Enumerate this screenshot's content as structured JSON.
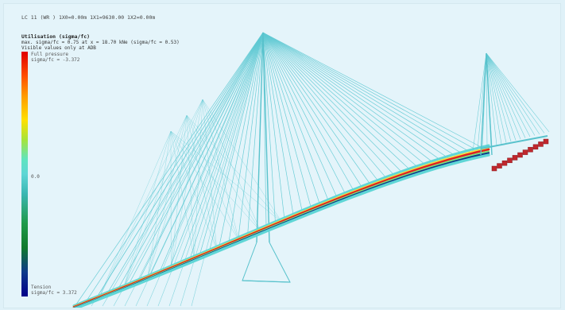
{
  "viewport": {
    "header": "LC 11 (WR )  1X0=0.00m  1X1=9630.00  1X2=0.00m"
  },
  "legend": {
    "title": "Utilisation (sigma/fc)",
    "line1": "max. sigma/fc = 0.75 at x = 18.70 kNe (sigma/fc = 0.53)",
    "line2": "Visible values only at ADB",
    "top_label": "Full pressure",
    "top_value": "sigma/fc = -3.372",
    "mid_value": "0.0",
    "bottom_label": "Tension",
    "bottom_value": "sigma/fc = 3.372",
    "colors": {
      "max": "#e00000",
      "mid": "#5fd6d6",
      "min": "#00008a"
    }
  },
  "model": {
    "cable_color": "#5fc9d3",
    "pier_color": "#58c2cc"
  }
}
